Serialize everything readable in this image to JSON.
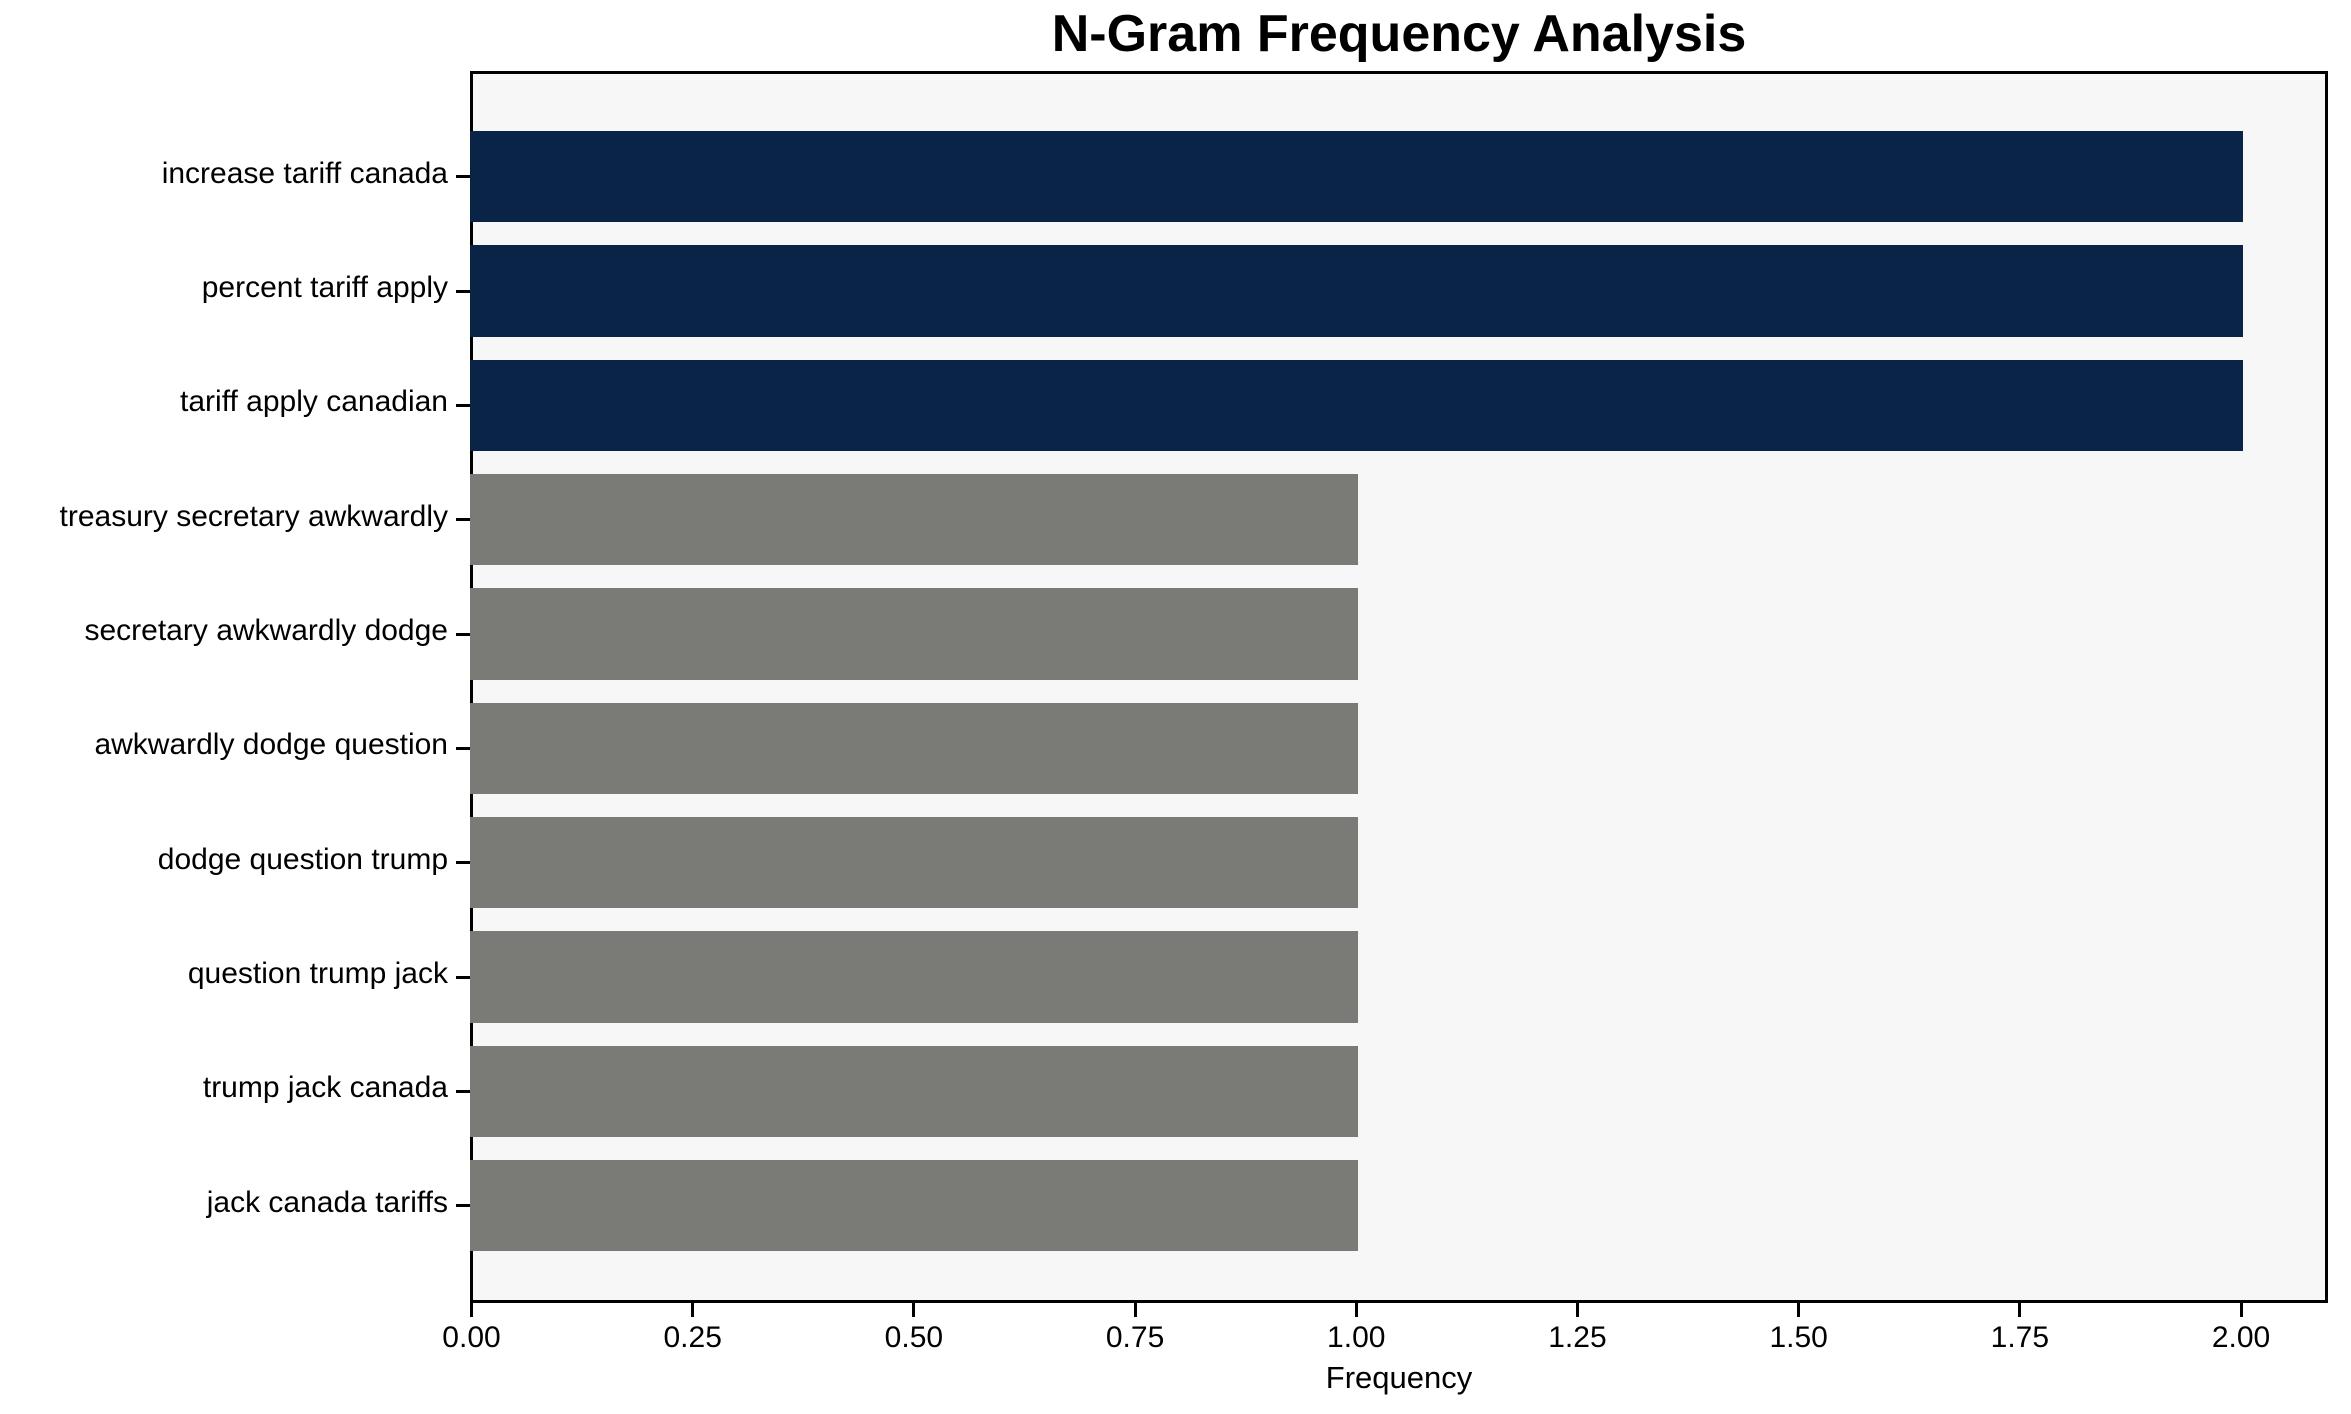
{
  "chart_data": {
    "type": "bar",
    "orientation": "horizontal",
    "title": "N-Gram Frequency Analysis",
    "xlabel": "Frequency",
    "ylabel": "",
    "categories": [
      "increase tariff canada",
      "percent tariff apply",
      "tariff apply canadian",
      "treasury secretary awkwardly",
      "secretary awkwardly dodge",
      "awkwardly dodge question",
      "dodge question trump",
      "question trump jack",
      "trump jack canada",
      "jack canada tariffs"
    ],
    "values": [
      2,
      2,
      2,
      1,
      1,
      1,
      1,
      1,
      1,
      1
    ],
    "bar_colors": [
      "#0a2448",
      "#0a2448",
      "#0a2448",
      "#7a7a77",
      "#7a7a77",
      "#7a7a77",
      "#7a7a77",
      "#7a7a77",
      "#7a7a77",
      "#7a7a77"
    ],
    "x_tick_labels": [
      "0.00",
      "0.25",
      "0.50",
      "0.75",
      "1.00",
      "1.25",
      "1.50",
      "1.75",
      "2.00"
    ],
    "xlim": [
      0,
      2.1
    ],
    "grid": false,
    "legend": "none",
    "plot_background": "#f7f7f7",
    "figure_background": "#ffffff",
    "axis_color": "#000000"
  }
}
